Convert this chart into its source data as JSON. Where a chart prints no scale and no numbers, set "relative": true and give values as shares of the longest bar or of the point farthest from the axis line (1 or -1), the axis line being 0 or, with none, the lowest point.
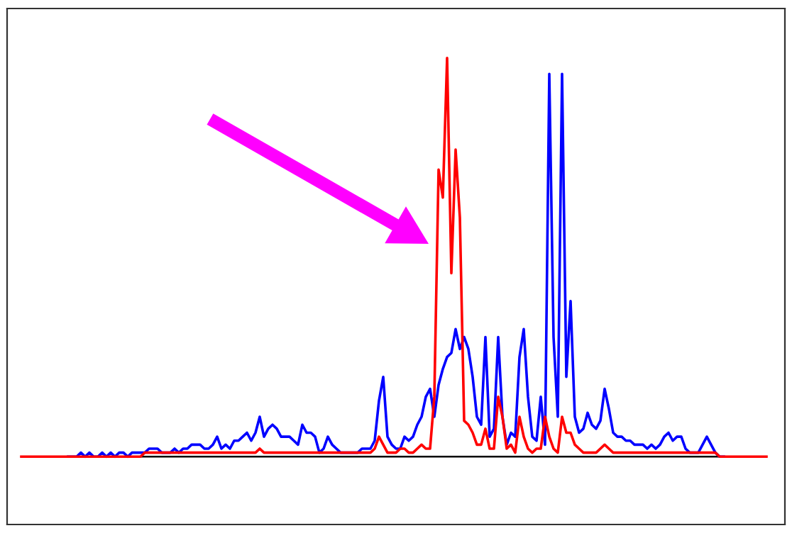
{
  "chart_data": {
    "type": "line",
    "relative": true,
    "marker": "none",
    "line_style": "solid",
    "categories": [
      null,
      null,
      null,
      null,
      null,
      null,
      null,
      null,
      null,
      null,
      null,
      null,
      null,
      null,
      null,
      null,
      null,
      null,
      null,
      null,
      null,
      null,
      null,
      null,
      null,
      null,
      null,
      null,
      null,
      null,
      null,
      null,
      null,
      null,
      null,
      null,
      null,
      null,
      null,
      null,
      null,
      null,
      null,
      null,
      null,
      null,
      null,
      null,
      null,
      null,
      null,
      null,
      null,
      null,
      null,
      null,
      null,
      null,
      null,
      null,
      null,
      null,
      null,
      null,
      null,
      null,
      null,
      null,
      null,
      null,
      null,
      null,
      null,
      null,
      null,
      null,
      null,
      null,
      null,
      null,
      null,
      null,
      null,
      null,
      null,
      null,
      null,
      null,
      null,
      null,
      null,
      null,
      null,
      null,
      null,
      null,
      null,
      null,
      null,
      null,
      null,
      null,
      null,
      null,
      null,
      null,
      null,
      null,
      null,
      null,
      null,
      null,
      null,
      null,
      null,
      null,
      null,
      null,
      null,
      null,
      null,
      null,
      null,
      null,
      null,
      null,
      null,
      null,
      null,
      null,
      null,
      null,
      null,
      null,
      null,
      null,
      null,
      null,
      null,
      null,
      null,
      null,
      null,
      null,
      null,
      null,
      null,
      null,
      null,
      null,
      null,
      null,
      null,
      null,
      null,
      null,
      null,
      null,
      null,
      null,
      null,
      null,
      null,
      null,
      null,
      null,
      null,
      null,
      null,
      null,
      null,
      null,
      null,
      null,
      null,
      null
    ],
    "series": [
      {
        "color": "#0000ff",
        "values": [
          null,
          null,
          null,
          null,
          null,
          null,
          null,
          null,
          null,
          null,
          null,
          0,
          0,
          0,
          0.01,
          0,
          0.01,
          0,
          0,
          0.01,
          0,
          0.01,
          0,
          0.01,
          0.01,
          0,
          0.01,
          0.01,
          0.01,
          0.01,
          0.02,
          0.02,
          0.02,
          0.01,
          0.01,
          0.01,
          0.02,
          0.01,
          0.02,
          0.02,
          0.03,
          0.03,
          0.03,
          0.02,
          0.02,
          0.03,
          0.05,
          0.02,
          0.03,
          0.02,
          0.04,
          0.04,
          0.05,
          0.06,
          0.04,
          0.06,
          0.1,
          0.05,
          0.07,
          0.08,
          0.07,
          0.05,
          0.05,
          0.05,
          0.04,
          0.03,
          0.08,
          0.06,
          0.06,
          0.05,
          0.01,
          0.02,
          0.05,
          0.03,
          0.02,
          0.01,
          0.01,
          0.01,
          0.01,
          0.01,
          0.02,
          0.02,
          0.02,
          0.04,
          0.14,
          0.2,
          0.05,
          0.03,
          0.02,
          0.02,
          0.05,
          0.04,
          0.05,
          0.08,
          0.1,
          0.15,
          0.17,
          0.1,
          0.18,
          0.22,
          0.25,
          0.26,
          0.32,
          0.27,
          0.3,
          0.27,
          0.2,
          0.1,
          0.08,
          0.3,
          0.05,
          0.07,
          0.3,
          0.1,
          0.03,
          0.06,
          0.05,
          0.25,
          0.32,
          0.15,
          0.05,
          0.04,
          0.15,
          0.03,
          0.96,
          0.3,
          0.1,
          0.96,
          0.2,
          0.39,
          0.1,
          0.06,
          0.07,
          0.11,
          0.08,
          0.07,
          0.09,
          0.17,
          0.12,
          0.06,
          0.05,
          0.05,
          0.04,
          0.04,
          0.03,
          0.03,
          0.03,
          0.02,
          0.03,
          0.02,
          0.03,
          0.05,
          0.06,
          0.04,
          0.05,
          0.05,
          0.02,
          0.01,
          0.01,
          0.01,
          0.03,
          0.05,
          0.03,
          0.01,
          0,
          0,
          null,
          null,
          null,
          null,
          null,
          null,
          null,
          null,
          null,
          null
        ]
      },
      {
        "color": "#ff0000",
        "values": [
          0,
          0,
          0,
          0,
          0,
          0,
          0,
          0,
          0,
          0,
          0,
          0,
          0,
          0,
          0,
          0,
          0,
          0,
          0,
          0,
          0,
          0,
          0,
          0,
          0,
          0,
          0,
          0,
          0,
          0.01,
          0.01,
          0.01,
          0.01,
          0.01,
          0.01,
          0.01,
          0.01,
          0.01,
          0.01,
          0.01,
          0.01,
          0.01,
          0.01,
          0.01,
          0.01,
          0.01,
          0.01,
          0.01,
          0.01,
          0.01,
          0.01,
          0.01,
          0.01,
          0.01,
          0.01,
          0.01,
          0.02,
          0.01,
          0.01,
          0.01,
          0.01,
          0.01,
          0.01,
          0.01,
          0.01,
          0.01,
          0.01,
          0.01,
          0.01,
          0.01,
          0.01,
          0.01,
          0.01,
          0.01,
          0.01,
          0.01,
          0.01,
          0.01,
          0.01,
          0.01,
          0.01,
          0.01,
          0.01,
          0.02,
          0.05,
          0.03,
          0.01,
          0.01,
          0.01,
          0.02,
          0.02,
          0.01,
          0.01,
          0.02,
          0.03,
          0.02,
          0.02,
          0.15,
          0.72,
          0.65,
          1,
          0.46,
          0.77,
          0.6,
          0.09,
          0.08,
          0.06,
          0.03,
          0.03,
          0.07,
          0.02,
          0.02,
          0.15,
          0.1,
          0.02,
          0.03,
          0.01,
          0.1,
          0.05,
          0.02,
          0.01,
          0.02,
          0.02,
          0.1,
          0.05,
          0.02,
          0.01,
          0.1,
          0.06,
          0.06,
          0.03,
          0.02,
          0.01,
          0.01,
          0.01,
          0.01,
          0.02,
          0.03,
          0.02,
          0.01,
          0.01,
          0.01,
          0.01,
          0.01,
          0.01,
          0.01,
          0.01,
          0.01,
          0.01,
          0.01,
          0.01,
          0.01,
          0.01,
          0.01,
          0.01,
          0.01,
          0.01,
          0.01,
          0.01,
          0.01,
          0.01,
          0.01,
          0.01,
          0.01,
          0,
          0,
          0,
          0,
          0,
          0,
          0,
          0,
          0,
          0,
          0,
          0
        ]
      }
    ]
  }
}
